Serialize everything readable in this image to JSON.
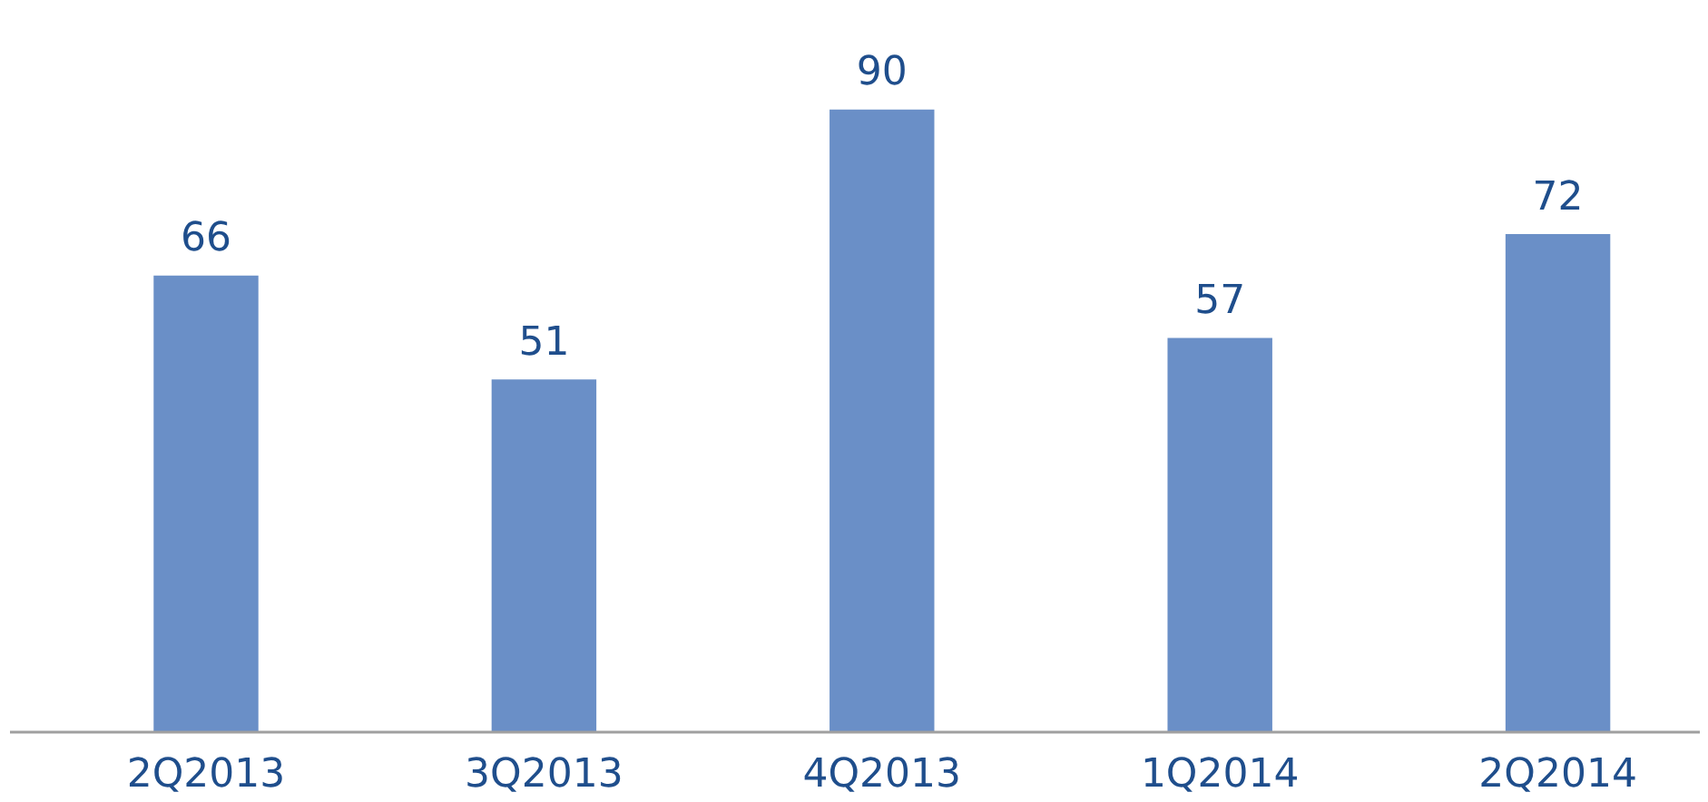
{
  "chart_data": {
    "type": "bar",
    "categories": [
      "2Q2013",
      "3Q2013",
      "4Q2013",
      "1Q2014",
      "2Q2014"
    ],
    "values": [
      66,
      51,
      90,
      57,
      72
    ],
    "color": "#6a8fc7",
    "data_labels": true
  }
}
